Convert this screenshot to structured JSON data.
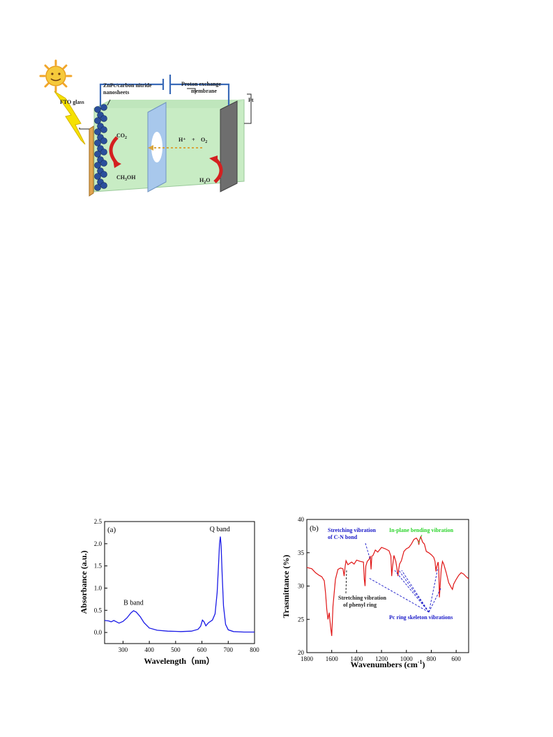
{
  "schematic": {
    "labels": {
      "fto": "FTO glass",
      "catalyst": "ZnPc/carbon nitride nanosheets",
      "membrane": "Proton exchange membrane",
      "pt": "Pt",
      "co2": "CO2",
      "ch3oh": "CH3OH",
      "hplus": "H⁺",
      "plus": "+",
      "o2": "O2",
      "h2o": "H2O"
    },
    "colors": {
      "cell": "#c8ecc4",
      "wire": "#3a6ab8",
      "fto": "#e0a550",
      "membrane": "#a8c8ec",
      "pt": "#6e6e6e",
      "bead": "#2b4f9c",
      "arrow": "#d42020",
      "proton_arrow": "#d9a53b",
      "sun": "#f6c93b",
      "bolt": "#f5e100"
    }
  },
  "chart_data": [
    {
      "type": "line",
      "panel_label": "(a)",
      "xlabel": "Wavelength（nm）",
      "ylabel": "Absorbance (a.u.)",
      "xlim": [
        230,
        800
      ],
      "ylim": [
        -0.25,
        2.5
      ],
      "xticks": [
        300,
        400,
        500,
        600,
        700,
        800
      ],
      "yticks": [
        0.0,
        0.5,
        1.0,
        1.5,
        2.0,
        2.5
      ],
      "ytick_labels": [
        "0.0",
        "0.5",
        "1.0",
        "1.5",
        "2.0",
        "2.5"
      ],
      "color": "#1a1ae6",
      "annotations": [
        {
          "text": "B band",
          "x": 340,
          "y": 0.62
        },
        {
          "text": "Q band",
          "x": 668,
          "y": 2.28
        }
      ],
      "series": [
        {
          "x": [
            230,
            245,
            255,
            265,
            275,
            285,
            300,
            315,
            330,
            340,
            350,
            365,
            380,
            400,
            430,
            470,
            520,
            560,
            585,
            595,
            602,
            608,
            615,
            625,
            640,
            650,
            658,
            663,
            667,
            670,
            673,
            677,
            682,
            690,
            700,
            720,
            760,
            800
          ],
          "y": [
            0.27,
            0.26,
            0.24,
            0.27,
            0.24,
            0.21,
            0.25,
            0.33,
            0.44,
            0.49,
            0.46,
            0.36,
            0.22,
            0.1,
            0.05,
            0.03,
            0.02,
            0.03,
            0.07,
            0.14,
            0.28,
            0.24,
            0.15,
            0.22,
            0.28,
            0.42,
            0.9,
            1.5,
            2.0,
            2.16,
            1.95,
            1.3,
            0.6,
            0.18,
            0.06,
            0.02,
            0.01,
            0.01
          ]
        }
      ]
    },
    {
      "type": "line",
      "panel_label": "(b)",
      "xlabel": "Wavenumbers (cm-1)",
      "ylabel": "Trasmittance (%)",
      "xlim": [
        1800,
        500
      ],
      "ylim": [
        20,
        40
      ],
      "xticks": [
        1800,
        1600,
        1400,
        1200,
        1000,
        800,
        600
      ],
      "yticks": [
        20,
        25,
        30,
        35,
        40
      ],
      "color": "#e01515",
      "series": [
        {
          "x": [
            1800,
            1760,
            1730,
            1700,
            1680,
            1660,
            1650,
            1640,
            1630,
            1620,
            1610,
            1600,
            1590,
            1570,
            1550,
            1530,
            1510,
            1500,
            1492,
            1485,
            1470,
            1440,
            1420,
            1400,
            1370,
            1345,
            1338,
            1332,
            1326,
            1315,
            1300,
            1290,
            1284,
            1278,
            1268,
            1250,
            1230,
            1200,
            1170,
            1140,
            1125,
            1118,
            1112,
            1100,
            1085,
            1075,
            1068,
            1062,
            1055,
            1040,
            1020,
            1000,
            980,
            960,
            940,
            920,
            905,
            900,
            895,
            885,
            870,
            855,
            840,
            820,
            800,
            780,
            770,
            762,
            758,
            750,
            745,
            740,
            735,
            728,
            720,
            710,
            700,
            680,
            660,
            640,
            630,
            620,
            600,
            580,
            560,
            540,
            520,
            500
          ],
          "y": [
            32.8,
            32.6,
            32.0,
            31.6,
            31.4,
            30.8,
            29.0,
            26.5,
            25.0,
            26.0,
            24.0,
            22.5,
            27.0,
            31.0,
            32.5,
            32.7,
            32.6,
            31.5,
            33.0,
            33.8,
            33.2,
            33.6,
            33.3,
            33.9,
            33.7,
            33.6,
            31.0,
            30.0,
            33.0,
            33.7,
            34.0,
            34.5,
            32.5,
            34.5,
            34.6,
            35.4,
            35.1,
            35.8,
            35.6,
            35.3,
            34.5,
            31.5,
            32.8,
            34.6,
            33.7,
            32.5,
            31.5,
            32.5,
            33.3,
            33.8,
            35.2,
            35.6,
            35.8,
            36.3,
            37.0,
            37.2,
            36.8,
            36.2,
            36.9,
            37.4,
            36.6,
            36.3,
            35.2,
            35.0,
            34.7,
            34.3,
            33.7,
            32.2,
            32.8,
            33.3,
            33.6,
            32.5,
            28.3,
            30.2,
            32.5,
            33.7,
            33.3,
            32.0,
            30.5,
            29.8,
            29.5,
            30.3,
            31.0,
            31.6,
            32.0,
            31.8,
            31.4,
            31.1
          ]
        }
      ],
      "annotations": [
        {
          "text": "Stretching vibration",
          "color": "#1818c8"
        },
        {
          "text": "of C-N bond",
          "color": "#1818c8"
        },
        {
          "text": "In-plane bending vibration",
          "color": "#2bd42b"
        },
        {
          "text": "Stretching vibration",
          "color": "#222222"
        },
        {
          "text": "of phenyl ring",
          "color": "#222222"
        },
        {
          "text": "Pc ring skeleton vibrations",
          "color": "#1818c8"
        }
      ]
    }
  ]
}
